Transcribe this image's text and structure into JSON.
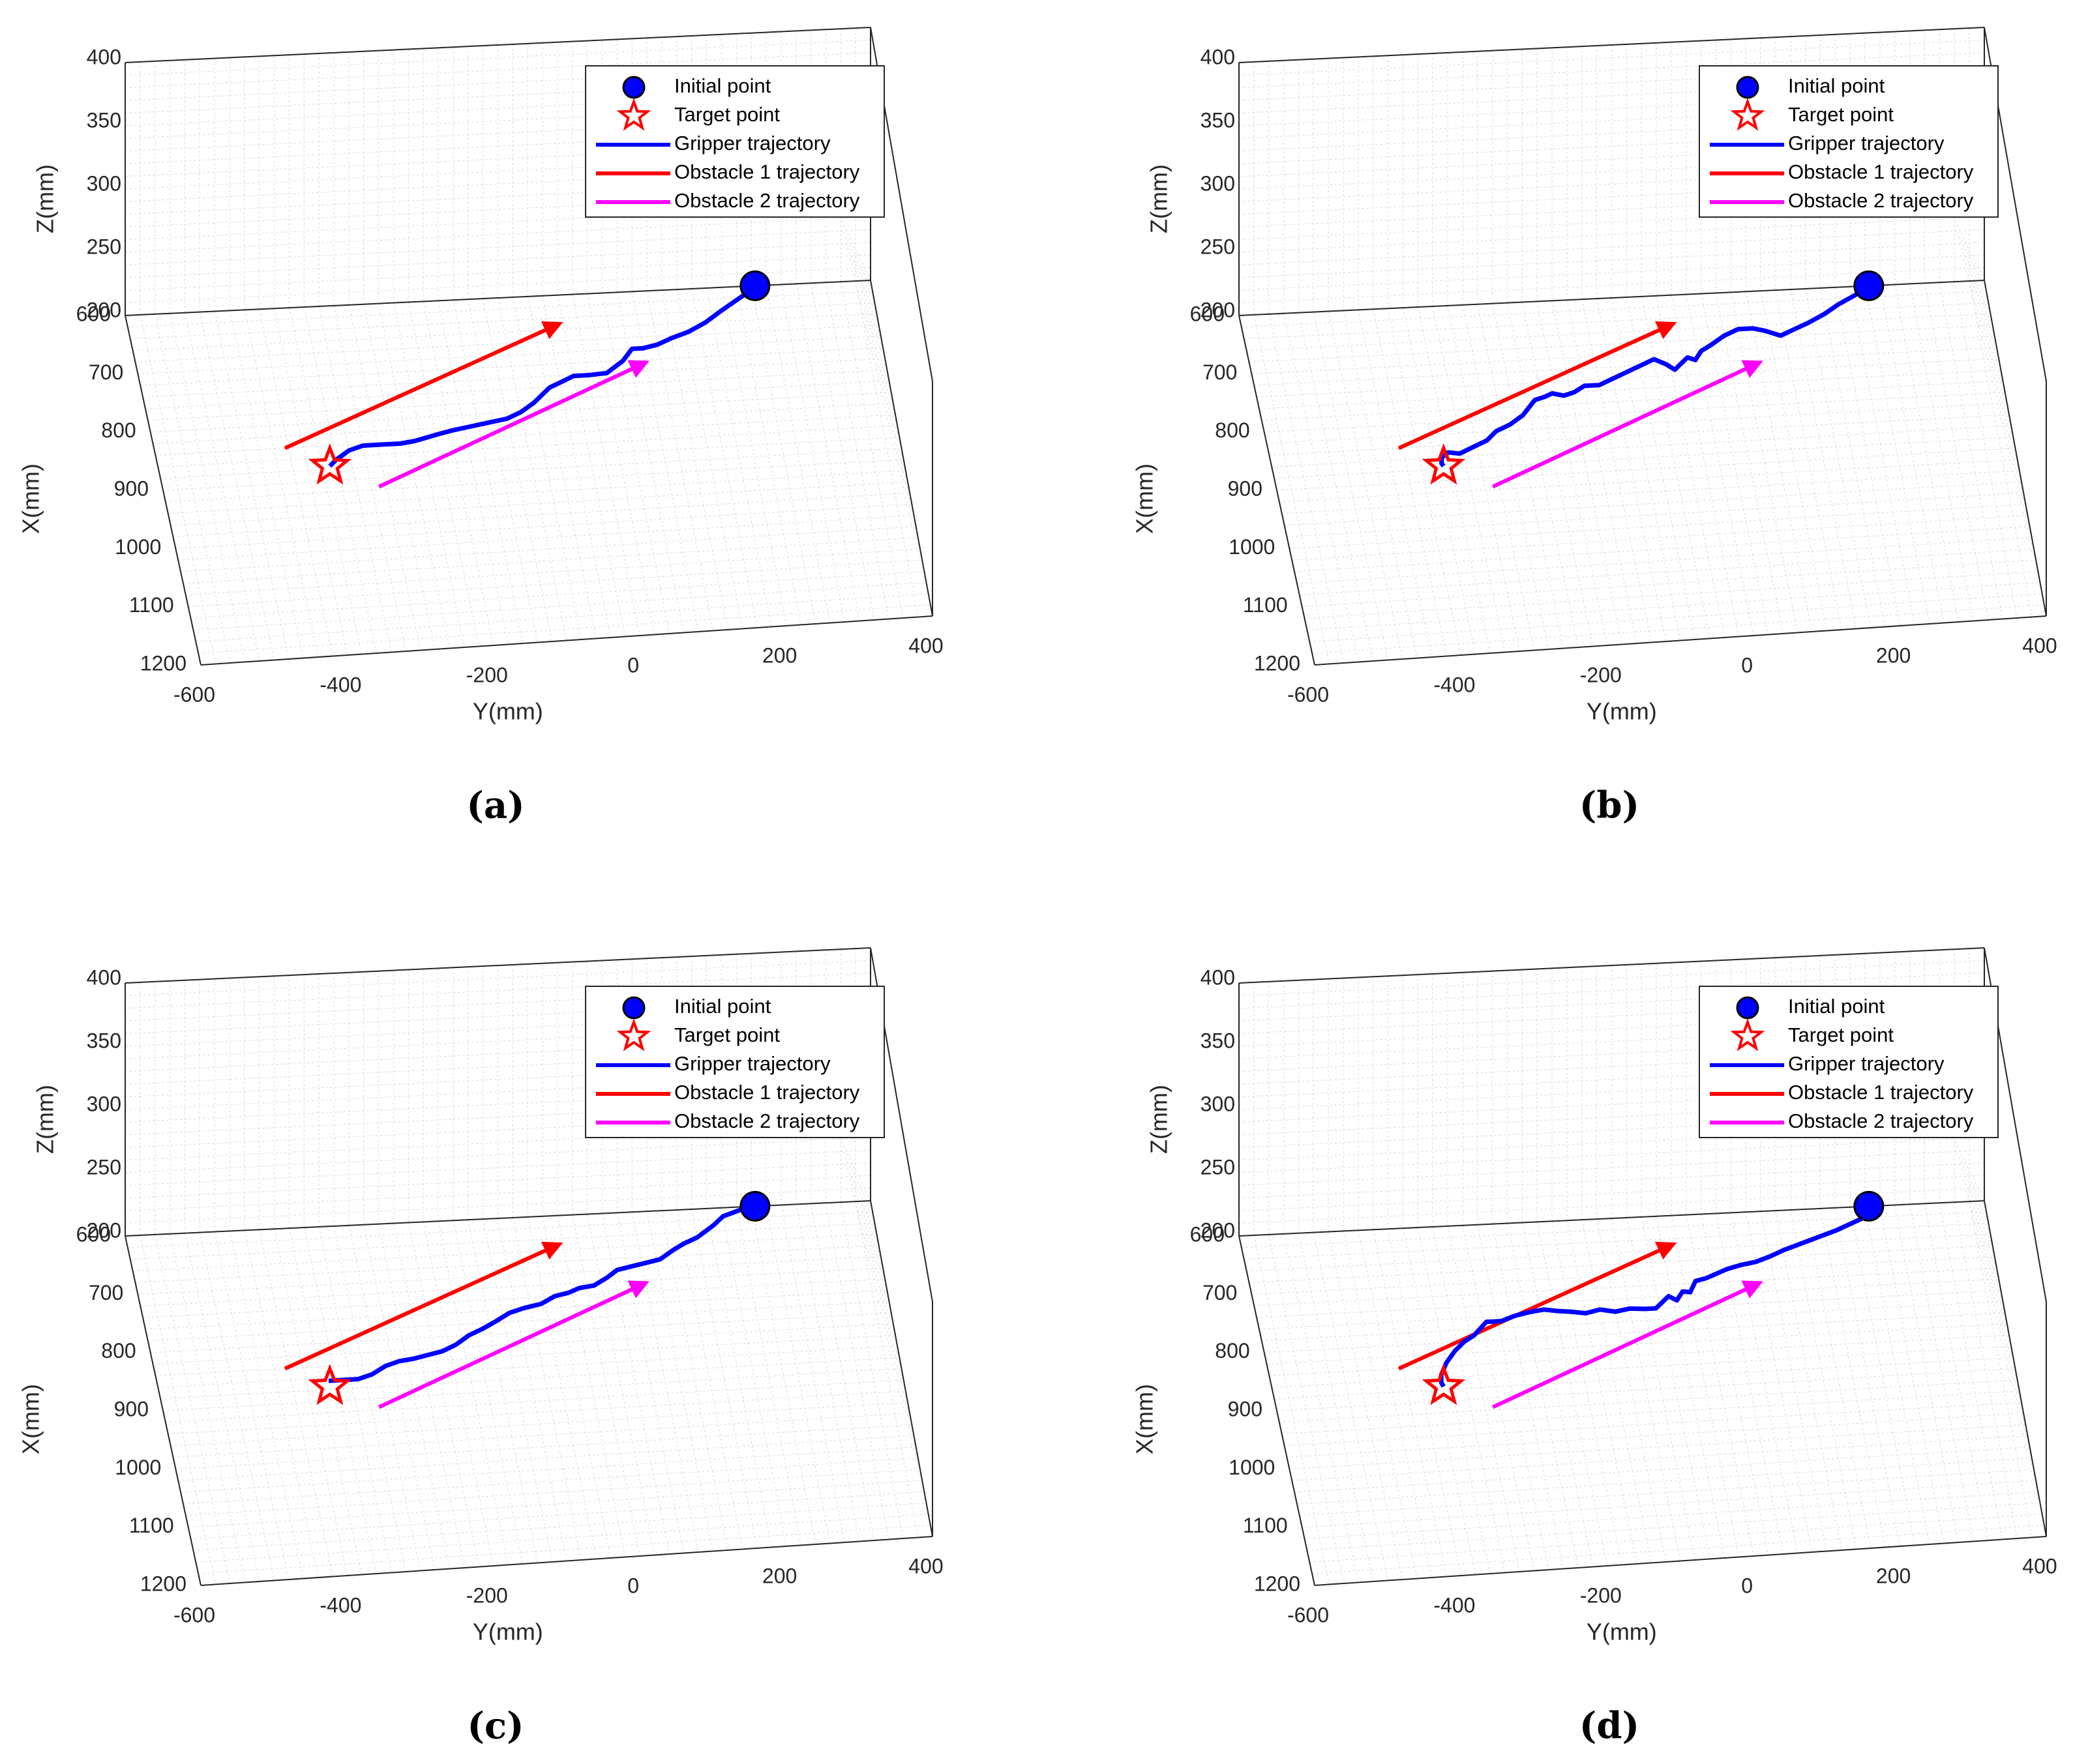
{
  "colors": {
    "gripper": "#0000ff",
    "obstacle1": "#ff0000",
    "obstacle2": "#ff00ff",
    "grid": "#dcdcdc",
    "axis": "#262626"
  },
  "chart_data": [
    {
      "type": "line",
      "caption": "(a)",
      "xlabel": "Y(mm)",
      "ylabel_floor": "X(mm)",
      "zlabel": "Z(mm)",
      "y_ticks": [
        "-600",
        "-400",
        "-200",
        "0",
        "200",
        "400"
      ],
      "x_ticks": [
        "600",
        "700",
        "800",
        "900",
        "1000",
        "1100",
        "1200"
      ],
      "z_ticks": [
        "400",
        "350",
        "300",
        "250",
        "200"
      ],
      "y_range": [
        -600,
        400
      ],
      "x_range": [
        600,
        1200
      ],
      "z_range": [
        200,
        400
      ],
      "legend": [
        "Initial point",
        "Target point",
        "Gripper trajectory",
        "Obstacle 1 trajectory",
        "Obstacle 2 trajectory"
      ],
      "initial_point": {
        "y": 245,
        "x": 600
      },
      "target_point": {
        "y": -370,
        "x": 875
      },
      "obstacle1": {
        "start": {
          "y": -425,
          "x": 840
        },
        "end": {
          "y": -25,
          "x": 650
        }
      },
      "obstacle2": {
        "start": {
          "y": -310,
          "x": 915
        },
        "end": {
          "y": 80,
          "x": 725
        }
      },
      "gripper": [
        [
          245,
          600
        ],
        [
          235,
          610
        ],
        [
          215,
          625
        ],
        [
          195,
          640
        ],
        [
          170,
          660
        ],
        [
          145,
          675
        ],
        [
          120,
          685
        ],
        [
          100,
          695
        ],
        [
          80,
          700
        ],
        [
          65,
          700
        ],
        [
          50,
          720
        ],
        [
          25,
          740
        ],
        [
          0,
          742
        ],
        [
          -20,
          742
        ],
        [
          -35,
          750
        ],
        [
          -55,
          760
        ],
        [
          -80,
          785
        ],
        [
          -100,
          800
        ],
        [
          -120,
          810
        ],
        [
          -145,
          815
        ],
        [
          -170,
          820
        ],
        [
          -195,
          825
        ],
        [
          -215,
          830
        ],
        [
          -250,
          840
        ],
        [
          -270,
          843
        ],
        [
          -300,
          843
        ],
        [
          -320,
          843
        ],
        [
          -340,
          850
        ],
        [
          -360,
          865
        ],
        [
          -370,
          875
        ]
      ]
    },
    {
      "type": "line",
      "caption": "(b)",
      "xlabel": "Y(mm)",
      "ylabel_floor": "X(mm)",
      "zlabel": "Z(mm)",
      "y_ticks": [
        "-600",
        "-400",
        "-200",
        "0",
        "200",
        "400"
      ],
      "x_ticks": [
        "600",
        "700",
        "800",
        "900",
        "1000",
        "1100",
        "1200"
      ],
      "z_ticks": [
        "400",
        "350",
        "300",
        "250",
        "200"
      ],
      "y_range": [
        -600,
        400
      ],
      "x_range": [
        600,
        1200
      ],
      "z_range": [
        200,
        400
      ],
      "legend": [
        "Initial point",
        "Target point",
        "Gripper trajectory",
        "Obstacle 1 trajectory",
        "Obstacle 2 trajectory"
      ],
      "initial_point": {
        "y": 245,
        "x": 600
      },
      "target_point": {
        "y": -370,
        "x": 875
      },
      "obstacle1": {
        "start": {
          "y": -425,
          "x": 840
        },
        "end": {
          "y": -25,
          "x": 650
        }
      },
      "obstacle2": {
        "start": {
          "y": -310,
          "x": 915
        },
        "end": {
          "y": 80,
          "x": 725
        }
      },
      "gripper": [
        [
          245,
          600
        ],
        [
          225,
          615
        ],
        [
          200,
          630
        ],
        [
          180,
          645
        ],
        [
          155,
          660
        ],
        [
          135,
          670
        ],
        [
          115,
          680
        ],
        [
          95,
          670
        ],
        [
          80,
          665
        ],
        [
          60,
          665
        ],
        [
          40,
          675
        ],
        [
          20,
          690
        ],
        [
          5,
          700
        ],
        [
          -5,
          715
        ],
        [
          -15,
          710
        ],
        [
          -25,
          720
        ],
        [
          -35,
          730
        ],
        [
          -45,
          720
        ],
        [
          -60,
          710
        ],
        [
          -80,
          720
        ],
        [
          -100,
          730
        ],
        [
          -120,
          740
        ],
        [
          -140,
          750
        ],
        [
          -160,
          750
        ],
        [
          -175,
          760
        ],
        [
          -190,
          765
        ],
        [
          -205,
          760
        ],
        [
          -215,
          765
        ],
        [
          -230,
          770
        ],
        [
          -250,
          795
        ],
        [
          -270,
          810
        ],
        [
          -290,
          820
        ],
        [
          -305,
          835
        ],
        [
          -325,
          845
        ],
        [
          -345,
          855
        ],
        [
          -360,
          852
        ],
        [
          -370,
          860
        ],
        [
          -372,
          870
        ],
        [
          -370,
          875
        ]
      ]
    },
    {
      "type": "line",
      "caption": "(c)",
      "xlabel": "Y(mm)",
      "ylabel_floor": "X(mm)",
      "zlabel": "Z(mm)",
      "y_ticks": [
        "-600",
        "-400",
        "-200",
        "0",
        "200",
        "400"
      ],
      "x_ticks": [
        "600",
        "700",
        "800",
        "900",
        "1000",
        "1100",
        "1200"
      ],
      "z_ticks": [
        "400",
        "350",
        "300",
        "250",
        "200"
      ],
      "y_range": [
        -600,
        400
      ],
      "x_range": [
        600,
        1200
      ],
      "z_range": [
        200,
        400
      ],
      "legend": [
        "Initial point",
        "Target point",
        "Gripper trajectory",
        "Obstacle 1 trajectory",
        "Obstacle 2 trajectory"
      ],
      "initial_point": {
        "y": 245,
        "x": 600
      },
      "target_point": {
        "y": -370,
        "x": 875
      },
      "obstacle1": {
        "start": {
          "y": -425,
          "x": 840
        },
        "end": {
          "y": -25,
          "x": 650
        }
      },
      "obstacle2": {
        "start": {
          "y": -310,
          "x": 915
        },
        "end": {
          "y": 80,
          "x": 725
        }
      },
      "gripper": [
        [
          245,
          600
        ],
        [
          225,
          605
        ],
        [
          200,
          615
        ],
        [
          185,
          630
        ],
        [
          160,
          650
        ],
        [
          140,
          660
        ],
        [
          125,
          670
        ],
        [
          105,
          685
        ],
        [
          85,
          690
        ],
        [
          65,
          695
        ],
        [
          45,
          700
        ],
        [
          30,
          712
        ],
        [
          10,
          725
        ],
        [
          -10,
          728
        ],
        [
          -25,
          735
        ],
        [
          -45,
          740
        ],
        [
          -65,
          752
        ],
        [
          -90,
          758
        ],
        [
          -110,
          765
        ],
        [
          -130,
          778
        ],
        [
          -150,
          790
        ],
        [
          -170,
          800
        ],
        [
          -190,
          815
        ],
        [
          -210,
          825
        ],
        [
          -230,
          830
        ],
        [
          -250,
          835
        ],
        [
          -270,
          838
        ],
        [
          -290,
          845
        ],
        [
          -310,
          858
        ],
        [
          -330,
          865
        ],
        [
          -350,
          865
        ],
        [
          -370,
          865
        ]
      ]
    },
    {
      "type": "line",
      "caption": "(d)",
      "xlabel": "Y(mm)",
      "ylabel_floor": "X(mm)",
      "zlabel": "Z(mm)",
      "y_ticks": [
        "-600",
        "-400",
        "-200",
        "0",
        "200",
        "400"
      ],
      "x_ticks": [
        "600",
        "700",
        "800",
        "900",
        "1000",
        "1100",
        "1200"
      ],
      "z_ticks": [
        "400",
        "350",
        "300",
        "250",
        "200"
      ],
      "y_range": [
        -600,
        400
      ],
      "x_range": [
        600,
        1200
      ],
      "z_range": [
        200,
        400
      ],
      "legend": [
        "Initial point",
        "Target point",
        "Gripper trajectory",
        "Obstacle 1 trajectory",
        "Obstacle 2 trajectory"
      ],
      "initial_point": {
        "y": 245,
        "x": 600
      },
      "target_point": {
        "y": -370,
        "x": 875
      },
      "obstacle1": {
        "start": {
          "y": -425,
          "x": 840
        },
        "end": {
          "y": -25,
          "x": 650
        }
      },
      "obstacle2": {
        "start": {
          "y": -310,
          "x": 915
        },
        "end": {
          "y": 80,
          "x": 725
        }
      },
      "gripper": [
        [
          245,
          600
        ],
        [
          235,
          620
        ],
        [
          215,
          630
        ],
        [
          195,
          640
        ],
        [
          170,
          650
        ],
        [
          145,
          660
        ],
        [
          120,
          670
        ],
        [
          100,
          680
        ],
        [
          80,
          688
        ],
        [
          60,
          692
        ],
        [
          40,
          698
        ],
        [
          25,
          705
        ],
        [
          10,
          712
        ],
        [
          -5,
          716
        ],
        [
          -15,
          735
        ],
        [
          -25,
          733
        ],
        [
          -35,
          748
        ],
        [
          -45,
          740
        ],
        [
          -55,
          750
        ],
        [
          -65,
          760
        ],
        [
          -80,
          760
        ],
        [
          -100,
          758
        ],
        [
          -120,
          762
        ],
        [
          -140,
          757
        ],
        [
          -160,
          762
        ],
        [
          -180,
          758
        ],
        [
          -195,
          756
        ],
        [
          -215,
          752
        ],
        [
          -235,
          755
        ],
        [
          -255,
          760
        ],
        [
          -275,
          768
        ],
        [
          -295,
          768
        ],
        [
          -315,
          790
        ],
        [
          -330,
          800
        ],
        [
          -345,
          815
        ],
        [
          -360,
          835
        ],
        [
          -370,
          855
        ],
        [
          -372,
          868
        ],
        [
          -370,
          875
        ]
      ]
    }
  ]
}
